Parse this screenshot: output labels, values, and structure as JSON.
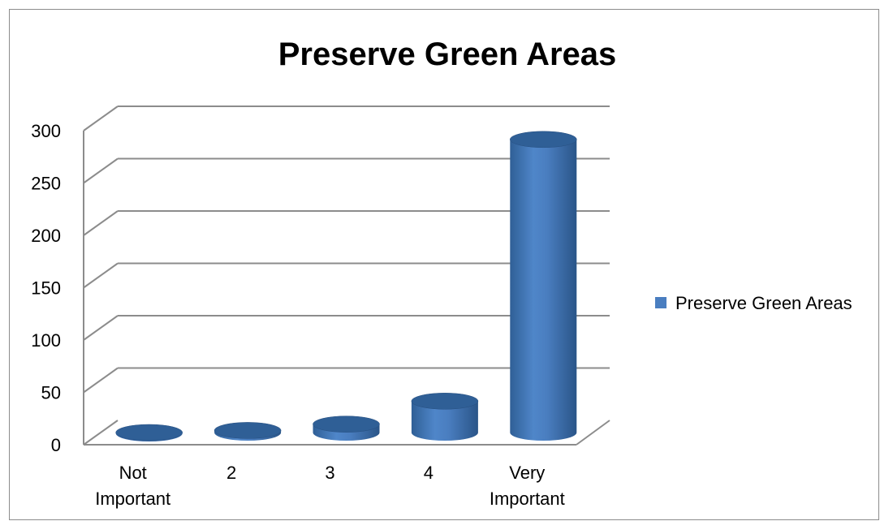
{
  "chart_data": {
    "type": "bar",
    "title": "Preserve Green Areas",
    "categories": [
      "Not Important",
      "2",
      "3",
      "4",
      "Very Important"
    ],
    "series": [
      {
        "name": "Preserve Green Areas",
        "values": [
          0,
          2,
          8,
          30,
          280
        ]
      }
    ],
    "ylim": [
      0,
      300
    ],
    "yticks": [
      0,
      50,
      100,
      150,
      200,
      250,
      300
    ],
    "grid": true,
    "legend_position": "right",
    "style": "3d-cylinder",
    "colors": {
      "bar_body": "#4a7ec0",
      "bar_top": "#2f5f96",
      "grid": "#8c8c8c",
      "frame": "#8c8c8c"
    }
  }
}
